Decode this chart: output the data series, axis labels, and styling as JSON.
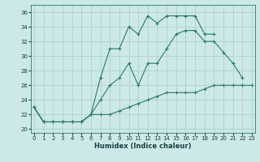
{
  "xlabel": "Humidex (Indice chaleur)",
  "ylabel": "",
  "background_color": "#cce8e8",
  "grid_color": "#aacccc",
  "line_color": "#2a7a6a",
  "hours": [
    0,
    1,
    2,
    3,
    4,
    5,
    6,
    7,
    8,
    9,
    10,
    11,
    12,
    13,
    14,
    15,
    16,
    17,
    18,
    19,
    20,
    21,
    22,
    23
  ],
  "line_top": [
    23,
    21,
    21,
    21,
    21,
    21,
    22,
    27,
    31,
    31,
    34,
    33,
    35.5,
    34.5,
    35.5,
    35.5,
    35.5,
    35.5,
    33,
    33,
    null,
    null,
    null,
    null
  ],
  "line_mid": [
    23,
    21,
    21,
    21,
    21,
    21,
    22,
    24,
    26,
    27,
    29,
    26,
    29,
    29,
    31,
    33,
    33.5,
    33.5,
    32,
    32,
    30.5,
    29,
    27,
    null
  ],
  "line_bot": [
    23,
    21,
    21,
    21,
    21,
    21,
    22,
    22,
    22,
    22.5,
    23,
    23.5,
    24,
    24.5,
    25,
    25,
    25,
    25,
    25.5,
    26,
    26,
    26,
    26,
    26
  ],
  "ylim": [
    19.5,
    37
  ],
  "xlim": [
    -0.3,
    23.3
  ],
  "yticks": [
    20,
    22,
    24,
    26,
    28,
    30,
    32,
    34,
    36
  ],
  "xticks": [
    0,
    1,
    2,
    3,
    4,
    5,
    6,
    7,
    8,
    9,
    10,
    11,
    12,
    13,
    14,
    15,
    16,
    17,
    18,
    19,
    20,
    21,
    22,
    23
  ]
}
